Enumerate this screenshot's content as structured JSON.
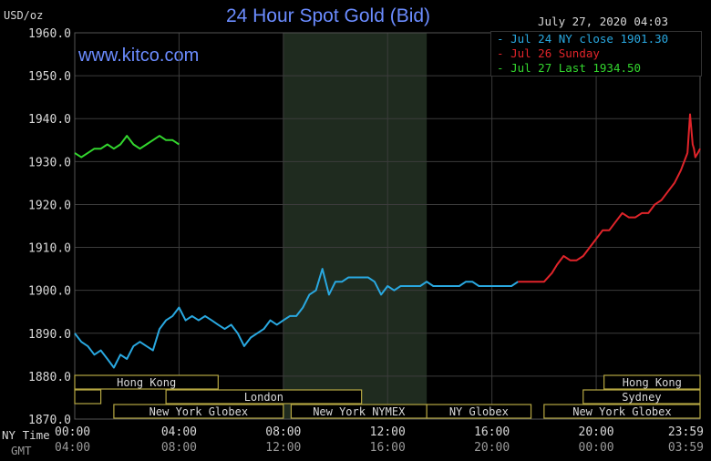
{
  "header": {
    "title": "24 Hour Spot Gold (Bid)",
    "site": "www.kitco.com",
    "unit": "USD/oz",
    "timestamp": "July 27, 2020 04:03"
  },
  "legend": [
    {
      "label": "Jul 24 NY close 1901.30",
      "color": "#29a8e0"
    },
    {
      "label": "Jul 26 Sunday",
      "color": "#e0242a"
    },
    {
      "label": "Jul 27 Last 1934.50",
      "color": "#33d62e"
    }
  ],
  "time_rows": {
    "ny_label": "NY Time",
    "gmt_label": "GMT"
  },
  "colors": {
    "grid": "#3c3c3c",
    "session_fill": "#1f2b1f",
    "market_box": "#b5a642",
    "text": "#d8d8d8"
  },
  "chart_data": {
    "type": "line",
    "title": "24 Hour Spot Gold (Bid)",
    "ylabel": "USD/oz",
    "ylim": [
      1870,
      1960
    ],
    "xlim": [
      0,
      23.983
    ],
    "y_ticks": [
      "1870.0",
      "1880.0",
      "1890.0",
      "1900.0",
      "1910.0",
      "1920.0",
      "1930.0",
      "1940.0",
      "1950.0",
      "1960.0"
    ],
    "x_ticks_ny": [
      "00:00",
      "04:00",
      "08:00",
      "12:00",
      "16:00",
      "20:00",
      "23:59"
    ],
    "x_ticks_gmt": [
      "04:00",
      "08:00",
      "12:00",
      "16:00",
      "20:00",
      "00:00",
      "03:59"
    ],
    "shaded_session": [
      8,
      13.5
    ],
    "sessions": [
      {
        "name": "Hong Kong",
        "start": 0,
        "end": 5.5,
        "row": 0
      },
      {
        "name": "",
        "start": 0,
        "end": 1,
        "row": 1
      },
      {
        "name": "",
        "start": 3.5,
        "end": 5.5,
        "row": 1
      },
      {
        "name": "London",
        "start": 3.5,
        "end": 11,
        "row": 1
      },
      {
        "name": "New York Globex",
        "start": 1.5,
        "end": 8,
        "row": 2
      },
      {
        "name": "New York NYMEX",
        "start": 8.3,
        "end": 13.5,
        "row": 2
      },
      {
        "name": "NY Globex",
        "start": 13.5,
        "end": 17.5,
        "row": 2
      },
      {
        "name": "Hong Kong",
        "start": 20.3,
        "end": 23.983,
        "row": 0
      },
      {
        "name": "Sydney",
        "start": 19.5,
        "end": 23.983,
        "row": 1
      },
      {
        "name": "New York Globex",
        "start": 18,
        "end": 23.983,
        "row": 2
      }
    ],
    "series": [
      {
        "name": "Jul 24 NY close 1901.30",
        "color": "#29a8e0",
        "x": [
          0,
          0.25,
          0.5,
          0.75,
          1,
          1.25,
          1.5,
          1.75,
          2,
          2.25,
          2.5,
          2.75,
          3,
          3.25,
          3.5,
          3.75,
          4,
          4.25,
          4.5,
          4.75,
          5,
          5.25,
          5.5,
          5.75,
          6,
          6.25,
          6.5,
          6.75,
          7,
          7.25,
          7.5,
          7.75,
          8,
          8.25,
          8.5,
          8.75,
          9,
          9.25,
          9.5,
          9.75,
          10,
          10.25,
          10.5,
          10.75,
          11,
          11.25,
          11.5,
          11.75,
          12,
          12.25,
          12.5,
          12.75,
          13,
          13.25,
          13.5,
          13.75,
          14,
          14.25,
          14.5,
          14.75,
          15,
          15.25,
          15.5,
          15.75,
          16,
          16.25,
          16.5,
          16.75,
          17
        ],
        "y": [
          1890,
          1888,
          1887,
          1885,
          1886,
          1884,
          1882,
          1885,
          1884,
          1887,
          1888,
          1887,
          1886,
          1891,
          1893,
          1894,
          1896,
          1893,
          1894,
          1893,
          1894,
          1893,
          1892,
          1891,
          1892,
          1890,
          1887,
          1889,
          1890,
          1891,
          1893,
          1892,
          1893,
          1894,
          1894,
          1896,
          1899,
          1900,
          1905,
          1899,
          1902,
          1902,
          1903,
          1903,
          1903,
          1903,
          1902,
          1899,
          1901,
          1900,
          1901,
          1901,
          1901,
          1901,
          1902,
          1901,
          1901,
          1901,
          1901,
          1901,
          1902,
          1902,
          1901,
          1901,
          1901,
          1901,
          1901,
          1901,
          1902
        ]
      },
      {
        "name": "Jul 26 Sunday",
        "color": "#e0242a",
        "x": [
          17,
          17.5,
          18,
          18.3,
          18.5,
          18.75,
          19,
          19.25,
          19.5,
          19.75,
          20,
          20.25,
          20.5,
          20.75,
          21,
          21.25,
          21.5,
          21.75,
          22,
          22.25,
          22.5,
          22.75,
          23,
          23.25,
          23.5
        ],
        "y": [
          1902,
          1902,
          1902,
          1904,
          1906,
          1908,
          1907,
          1907,
          1908,
          1910,
          1912,
          1914,
          1914,
          1916,
          1918,
          1917,
          1917,
          1918,
          1918,
          1920,
          1921,
          1923,
          1925,
          1928,
          1932
        ]
      },
      {
        "name": "Jul 27 Last 1934.50",
        "color": "#33d62e",
        "x": [
          0,
          0.25,
          0.5,
          0.75,
          1,
          1.25,
          1.5,
          1.75,
          2,
          2.25,
          2.5,
          2.75,
          3,
          3.25,
          3.5,
          3.75,
          4
        ],
        "y": [
          1932,
          1931,
          1932,
          1933,
          1933,
          1934,
          1933,
          1934,
          1936,
          1934,
          1933,
          1934,
          1935,
          1936,
          1935,
          1935,
          1934
        ]
      },
      {
        "name": "Jul 27 Last 1934.50 (tail)",
        "color": "#e0242a",
        "x": [
          23.5,
          23.6,
          23.7,
          23.75,
          23.8,
          23.9,
          23.983
        ],
        "y": [
          1932,
          1941,
          1934,
          1933,
          1931,
          1932,
          1933
        ]
      }
    ]
  }
}
